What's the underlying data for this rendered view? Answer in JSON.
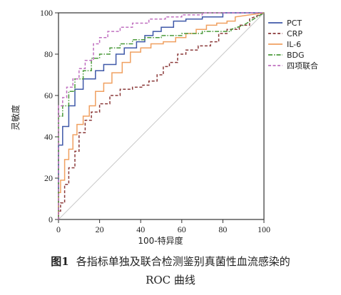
{
  "chart_data": {
    "type": "line",
    "xlabel": "100-特异度",
    "ylabel": "灵敏度",
    "xlim": [
      0,
      100
    ],
    "ylim": [
      0,
      100
    ],
    "xticks": [
      0,
      20,
      40,
      60,
      80,
      100
    ],
    "yticks": [
      0,
      20,
      40,
      60,
      80,
      100
    ],
    "grid": false,
    "legend_position": "right",
    "diagonal_reference": true,
    "series": [
      {
        "name": "PCT",
        "color": "#3f58a8",
        "style": "solid",
        "x": [
          0,
          0,
          0,
          2,
          2,
          5,
          5,
          8,
          8,
          12,
          12,
          18,
          18,
          22,
          22,
          28,
          28,
          32,
          32,
          38,
          38,
          42,
          42,
          46,
          46,
          50,
          50,
          56,
          56,
          62,
          62,
          70,
          70,
          80,
          80,
          100
        ],
        "y": [
          0,
          34,
          36,
          36,
          45,
          45,
          55,
          55,
          63,
          63,
          68,
          68,
          72,
          72,
          75,
          75,
          80,
          80,
          83,
          83,
          86,
          86,
          89,
          89,
          91,
          91,
          93,
          93,
          96,
          96,
          97,
          97,
          98,
          98,
          100,
          100
        ]
      },
      {
        "name": "CRP",
        "color": "#8b3a3a",
        "style": "dashed",
        "x": [
          0,
          0,
          1,
          1,
          3,
          3,
          5,
          5,
          8,
          8,
          10,
          10,
          13,
          13,
          16,
          16,
          20,
          20,
          25,
          25,
          30,
          30,
          36,
          36,
          41,
          41,
          44,
          44,
          48,
          48,
          51,
          51,
          54,
          54,
          58,
          58,
          62,
          62,
          68,
          68,
          74,
          74,
          78,
          78,
          82,
          82,
          88,
          88,
          93,
          93,
          100
        ],
        "y": [
          0,
          4,
          4,
          8,
          8,
          17,
          17,
          25,
          25,
          33,
          33,
          42,
          42,
          48,
          48,
          52,
          52,
          56,
          56,
          60,
          60,
          63,
          63,
          64,
          64,
          65,
          65,
          67,
          67,
          70,
          70,
          74,
          74,
          76,
          76,
          80,
          80,
          82,
          82,
          84,
          84,
          86,
          86,
          90,
          90,
          92,
          92,
          94,
          94,
          97,
          100
        ]
      },
      {
        "name": "IL-6",
        "color": "#f0a060",
        "style": "solid",
        "x": [
          0,
          0,
          1,
          1,
          3,
          3,
          5,
          5,
          7,
          7,
          9,
          9,
          12,
          12,
          15,
          15,
          18,
          18,
          22,
          22,
          26,
          26,
          31,
          31,
          35,
          35,
          40,
          40,
          45,
          45,
          51,
          51,
          57,
          57,
          62,
          62,
          67,
          67,
          72,
          72,
          77,
          77,
          82,
          82,
          86,
          86,
          100
        ],
        "y": [
          0,
          13,
          13,
          19,
          19,
          29,
          29,
          34,
          34,
          41,
          41,
          46,
          46,
          50,
          50,
          55,
          55,
          62,
          62,
          66,
          66,
          71,
          71,
          76,
          76,
          81,
          81,
          83,
          83,
          85,
          85,
          86,
          86,
          88,
          88,
          90,
          90,
          92,
          92,
          94,
          94,
          95,
          95,
          96,
          96,
          98,
          100
        ]
      },
      {
        "name": "BDG",
        "color": "#4a9a3a",
        "style": "dashdot",
        "x": [
          0,
          0,
          2,
          2,
          5,
          5,
          8,
          8,
          12,
          12,
          16,
          16,
          20,
          20,
          25,
          25,
          30,
          30,
          36,
          36,
          42,
          42,
          50,
          50,
          60,
          60,
          70,
          70,
          84,
          84,
          90,
          95,
          100
        ],
        "y": [
          0,
          50,
          50,
          55,
          55,
          62,
          62,
          68,
          68,
          72,
          72,
          78,
          78,
          80,
          80,
          83,
          83,
          85,
          85,
          87,
          87,
          88,
          88,
          89,
          89,
          90,
          90,
          91,
          91,
          92,
          94,
          97,
          100
        ]
      },
      {
        "name": "四项联合",
        "color": "#c070c0",
        "style": "dashed",
        "x": [
          0,
          0,
          2,
          2,
          4,
          4,
          7,
          7,
          10,
          10,
          13,
          13,
          17,
          17,
          20,
          20,
          24,
          24,
          30,
          30,
          36,
          36,
          44,
          44,
          52,
          52,
          60,
          60,
          70,
          70,
          100
        ],
        "y": [
          0,
          55,
          55,
          59,
          59,
          64,
          64,
          68,
          68,
          73,
          73,
          77,
          77,
          85,
          85,
          88,
          88,
          91,
          91,
          93,
          93,
          95,
          95,
          97,
          97,
          98,
          98,
          99,
          99,
          100,
          100
        ]
      }
    ]
  },
  "caption": {
    "number": "图1",
    "line1": "各指标单独及联合检测鉴别真菌性血流感染的",
    "line2": "ROC 曲线"
  }
}
